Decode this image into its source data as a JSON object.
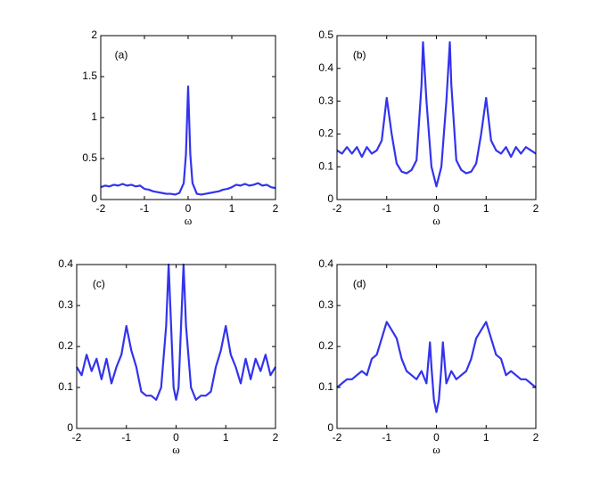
{
  "chart_data": [
    {
      "type": "line",
      "annotation": "(a)",
      "x_label": "ω",
      "x": [
        -2,
        -1.9,
        -1.8,
        -1.7,
        -1.6,
        -1.5,
        -1.4,
        -1.3,
        -1.2,
        -1.1,
        -1,
        -0.9,
        -0.8,
        -0.7,
        -0.6,
        -0.5,
        -0.4,
        -0.3,
        -0.2,
        -0.1,
        -0.05,
        0,
        0.05,
        0.1,
        0.2,
        0.3,
        0.4,
        0.5,
        0.6,
        0.7,
        0.8,
        0.9,
        1,
        1.1,
        1.2,
        1.3,
        1.4,
        1.5,
        1.6,
        1.7,
        1.8,
        1.9,
        2
      ],
      "series": [
        {
          "color": "#3333ee",
          "values": [
            0.15,
            0.17,
            0.16,
            0.18,
            0.17,
            0.19,
            0.17,
            0.18,
            0.16,
            0.17,
            0.13,
            0.12,
            0.1,
            0.09,
            0.08,
            0.07,
            0.07,
            0.06,
            0.08,
            0.2,
            0.55,
            1.38,
            0.55,
            0.2,
            0.07,
            0.06,
            0.07,
            0.08,
            0.09,
            0.1,
            0.12,
            0.13,
            0.15,
            0.18,
            0.17,
            0.19,
            0.17,
            0.18,
            0.2,
            0.17,
            0.18,
            0.15,
            0.14
          ]
        }
      ],
      "xlim": [
        -2,
        2
      ],
      "ylim": [
        0,
        2
      ],
      "xticks": [
        -2,
        -1,
        0,
        1,
        2
      ],
      "yticks": [
        0,
        0.5,
        1,
        1.5,
        2
      ]
    },
    {
      "type": "line",
      "annotation": "(b)",
      "x_label": "ω",
      "x": [
        -2,
        -1.9,
        -1.8,
        -1.7,
        -1.6,
        -1.5,
        -1.4,
        -1.3,
        -1.2,
        -1.1,
        -1,
        -0.9,
        -0.8,
        -0.7,
        -0.6,
        -0.5,
        -0.4,
        -0.3,
        -0.27,
        -0.2,
        -0.1,
        0,
        0.1,
        0.2,
        0.27,
        0.3,
        0.4,
        0.5,
        0.6,
        0.7,
        0.8,
        0.9,
        1,
        1.1,
        1.2,
        1.3,
        1.4,
        1.5,
        1.6,
        1.7,
        1.8,
        1.9,
        2
      ],
      "series": [
        {
          "color": "#3333ee",
          "values": [
            0.15,
            0.14,
            0.16,
            0.14,
            0.16,
            0.13,
            0.16,
            0.14,
            0.15,
            0.18,
            0.31,
            0.2,
            0.11,
            0.085,
            0.08,
            0.09,
            0.12,
            0.35,
            0.48,
            0.3,
            0.1,
            0.04,
            0.1,
            0.3,
            0.48,
            0.35,
            0.12,
            0.09,
            0.08,
            0.085,
            0.11,
            0.2,
            0.31,
            0.18,
            0.15,
            0.14,
            0.16,
            0.13,
            0.16,
            0.14,
            0.16,
            0.15,
            0.14
          ]
        }
      ],
      "xlim": [
        -2,
        2
      ],
      "ylim": [
        0,
        0.5
      ],
      "xticks": [
        -2,
        -1,
        0,
        1,
        2
      ],
      "yticks": [
        0,
        0.1,
        0.2,
        0.3,
        0.4,
        0.5
      ]
    },
    {
      "type": "line",
      "annotation": "(c)",
      "x_label": "ω",
      "x": [
        -2,
        -1.9,
        -1.8,
        -1.7,
        -1.6,
        -1.5,
        -1.4,
        -1.3,
        -1.2,
        -1.1,
        -1,
        -0.9,
        -0.8,
        -0.7,
        -0.6,
        -0.5,
        -0.4,
        -0.3,
        -0.2,
        -0.15,
        -0.1,
        -0.05,
        0,
        0.05,
        0.1,
        0.15,
        0.2,
        0.3,
        0.4,
        0.5,
        0.6,
        0.7,
        0.8,
        0.9,
        1,
        1.1,
        1.2,
        1.3,
        1.4,
        1.5,
        1.6,
        1.7,
        1.8,
        1.9,
        2
      ],
      "series": [
        {
          "color": "#3333ee",
          "values": [
            0.15,
            0.13,
            0.18,
            0.14,
            0.17,
            0.12,
            0.17,
            0.11,
            0.15,
            0.18,
            0.25,
            0.19,
            0.15,
            0.09,
            0.08,
            0.08,
            0.07,
            0.1,
            0.25,
            0.4,
            0.25,
            0.1,
            0.07,
            0.1,
            0.25,
            0.4,
            0.25,
            0.1,
            0.07,
            0.08,
            0.08,
            0.09,
            0.15,
            0.19,
            0.25,
            0.18,
            0.15,
            0.11,
            0.17,
            0.12,
            0.17,
            0.14,
            0.18,
            0.13,
            0.15
          ]
        }
      ],
      "xlim": [
        -2,
        2
      ],
      "ylim": [
        0,
        0.4
      ],
      "xticks": [
        -2,
        -1,
        0,
        1,
        2
      ],
      "yticks": [
        0,
        0.1,
        0.2,
        0.3,
        0.4
      ]
    },
    {
      "type": "line",
      "annotation": "(d)",
      "x_label": "ω",
      "x": [
        -2,
        -1.9,
        -1.8,
        -1.7,
        -1.6,
        -1.5,
        -1.4,
        -1.3,
        -1.2,
        -1.1,
        -1,
        -0.9,
        -0.8,
        -0.7,
        -0.6,
        -0.5,
        -0.4,
        -0.3,
        -0.2,
        -0.13,
        -0.1,
        -0.05,
        0,
        0.05,
        0.1,
        0.13,
        0.2,
        0.3,
        0.4,
        0.5,
        0.6,
        0.7,
        0.8,
        0.9,
        1,
        1.1,
        1.2,
        1.3,
        1.4,
        1.5,
        1.6,
        1.7,
        1.8,
        1.9,
        2
      ],
      "series": [
        {
          "color": "#3333ee",
          "values": [
            0.1,
            0.11,
            0.12,
            0.12,
            0.13,
            0.14,
            0.13,
            0.17,
            0.18,
            0.22,
            0.26,
            0.24,
            0.22,
            0.17,
            0.14,
            0.13,
            0.12,
            0.14,
            0.11,
            0.21,
            0.15,
            0.07,
            0.04,
            0.07,
            0.15,
            0.21,
            0.11,
            0.14,
            0.12,
            0.13,
            0.14,
            0.17,
            0.22,
            0.24,
            0.26,
            0.22,
            0.18,
            0.17,
            0.13,
            0.14,
            0.13,
            0.12,
            0.12,
            0.11,
            0.1
          ]
        }
      ],
      "xlim": [
        -2,
        2
      ],
      "ylim": [
        0,
        0.4
      ],
      "xticks": [
        -2,
        -1,
        0,
        1,
        2
      ],
      "yticks": [
        0,
        0.1,
        0.2,
        0.3,
        0.4
      ]
    }
  ]
}
